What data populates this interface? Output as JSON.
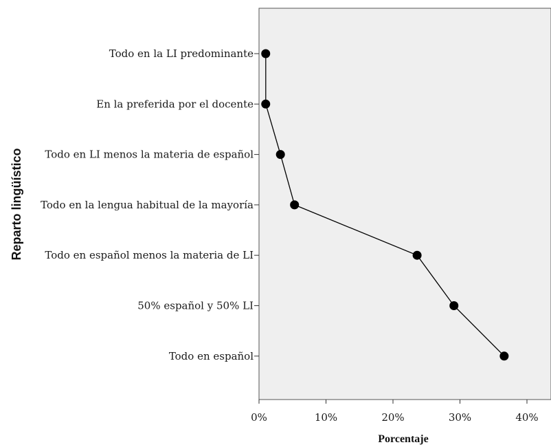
{
  "chart_data": {
    "type": "line",
    "categories": [
      "Todo en la LI predominante",
      "En la preferida por el docente",
      "Todo en LI menos la materia de español",
      "Todo en la lengua habitual de la mayoría",
      "Todo en español menos la materia de LI",
      "50% español y 50% LI",
      "Todo en español"
    ],
    "values": [
      1.0,
      1.0,
      3.2,
      5.3,
      23.6,
      29.1,
      36.6
    ],
    "xlim": [
      0,
      43
    ],
    "xticks": [
      0,
      10,
      20,
      30,
      40
    ],
    "xtick_labels": [
      "0%",
      "10%",
      "20%",
      "30%",
      "40%"
    ],
    "xlabel": "Porcentaje",
    "ylabel": "Reparto lingüístico",
    "title": "",
    "grid": false,
    "legend": "none",
    "colors": {
      "plot_background": "#efefef",
      "line": "#000000",
      "marker": "#000000",
      "frame": "#555555"
    }
  }
}
